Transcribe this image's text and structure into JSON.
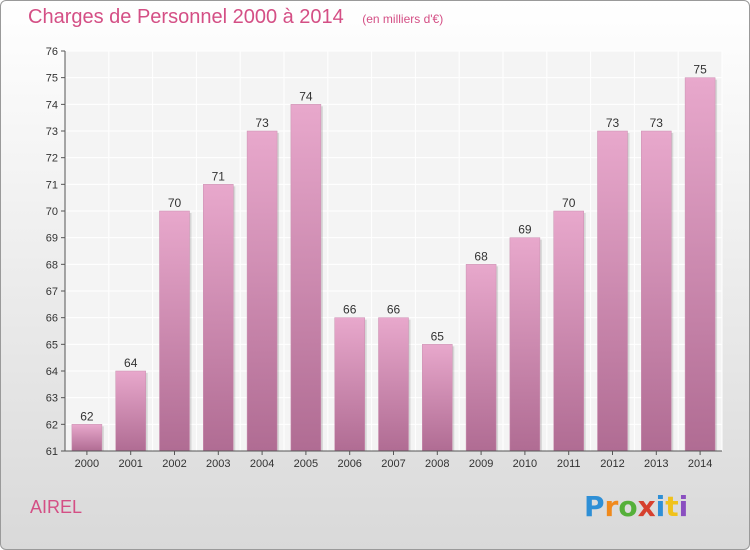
{
  "header": {
    "title": "Charges de Personnel 2000 à 2014",
    "subtitle": "(en milliers d'€)"
  },
  "footer": {
    "location": "AIREL",
    "logo_text": "Proxiti"
  },
  "colors": {
    "bar_top": "#e8a8cc",
    "bar_bottom": "#b06c93",
    "title": "#d44f85"
  },
  "chart_data": {
    "type": "bar",
    "title": "Charges de Personnel 2000 à 2014",
    "subtitle": "(en milliers d'€)",
    "categories": [
      "2000",
      "2001",
      "2002",
      "2003",
      "2004",
      "2005",
      "2006",
      "2007",
      "2008",
      "2009",
      "2010",
      "2011",
      "2012",
      "2013",
      "2014"
    ],
    "values": [
      62,
      64,
      70,
      71,
      73,
      74,
      66,
      66,
      65,
      68,
      69,
      70,
      73,
      73,
      75
    ],
    "ylim": [
      61,
      76
    ],
    "yticks": [
      61,
      62,
      63,
      64,
      65,
      66,
      67,
      68,
      69,
      70,
      71,
      72,
      73,
      74,
      75,
      76
    ],
    "grid": true,
    "xlabel": "",
    "ylabel": ""
  }
}
